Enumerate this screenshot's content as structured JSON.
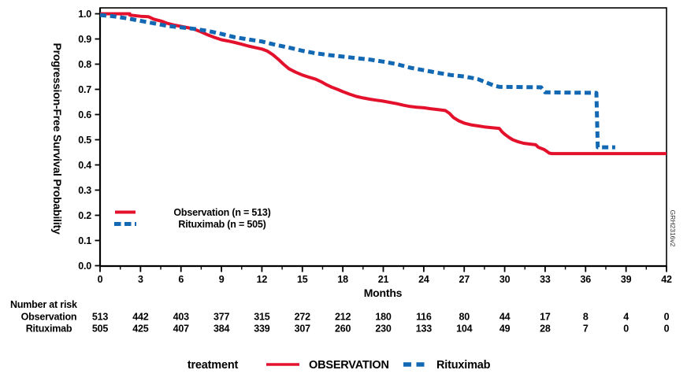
{
  "figure": {
    "watermark": "GRH2316v2"
  },
  "chart_data": {
    "type": "line",
    "subtype": "kaplan-meier-step",
    "title": "",
    "xlabel": "Months",
    "ylabel": "Progression-Free Survival Probability",
    "xlim": [
      0,
      42
    ],
    "ylim": [
      0.0,
      1.0
    ],
    "x_major_ticks": [
      0,
      3,
      6,
      9,
      12,
      15,
      18,
      21,
      24,
      27,
      30,
      33,
      36,
      39,
      42
    ],
    "x_minor_tick_step": 1.5,
    "y_ticks": [
      0.0,
      0.1,
      0.2,
      0.3,
      0.4,
      0.5,
      0.6,
      0.7,
      0.8,
      0.9,
      1.0
    ],
    "grid": false,
    "legend_position": "inside-lower-left",
    "series": [
      {
        "name": "Observation",
        "legend_label": "Observation (n = 513)",
        "color": "#e4112d",
        "style": "solid",
        "points": [
          [
            0,
            1.0
          ],
          [
            2.2,
            1.0
          ],
          [
            2.2,
            0.995
          ],
          [
            3,
            0.99
          ],
          [
            3.6,
            0.988
          ],
          [
            4,
            0.978
          ],
          [
            4.6,
            0.97
          ],
          [
            5,
            0.962
          ],
          [
            5.5,
            0.955
          ],
          [
            6,
            0.95
          ],
          [
            6.5,
            0.945
          ],
          [
            7,
            0.938
          ],
          [
            7.5,
            0.928
          ],
          [
            8,
            0.916
          ],
          [
            8.5,
            0.906
          ],
          [
            9,
            0.897
          ],
          [
            9.5,
            0.892
          ],
          [
            10,
            0.886
          ],
          [
            10.5,
            0.879
          ],
          [
            11,
            0.872
          ],
          [
            11.5,
            0.866
          ],
          [
            12,
            0.86
          ],
          [
            12.4,
            0.852
          ],
          [
            12.8,
            0.838
          ],
          [
            13.2,
            0.82
          ],
          [
            13.6,
            0.8
          ],
          [
            14,
            0.782
          ],
          [
            14.5,
            0.768
          ],
          [
            15,
            0.757
          ],
          [
            15.5,
            0.748
          ],
          [
            16,
            0.74
          ],
          [
            16.4,
            0.73
          ],
          [
            16.8,
            0.718
          ],
          [
            17.2,
            0.708
          ],
          [
            17.6,
            0.7
          ],
          [
            18,
            0.691
          ],
          [
            18.5,
            0.681
          ],
          [
            19,
            0.672
          ],
          [
            19.5,
            0.666
          ],
          [
            20,
            0.661
          ],
          [
            20.5,
            0.657
          ],
          [
            21,
            0.653
          ],
          [
            21.5,
            0.648
          ],
          [
            22,
            0.643
          ],
          [
            22.5,
            0.637
          ],
          [
            23,
            0.632
          ],
          [
            23.5,
            0.629
          ],
          [
            24,
            0.627
          ],
          [
            24.5,
            0.623
          ],
          [
            25,
            0.62
          ],
          [
            25.6,
            0.616
          ],
          [
            25.9,
            0.605
          ],
          [
            26.2,
            0.588
          ],
          [
            26.6,
            0.575
          ],
          [
            27,
            0.566
          ],
          [
            27.5,
            0.559
          ],
          [
            28,
            0.555
          ],
          [
            28.5,
            0.551
          ],
          [
            29,
            0.548
          ],
          [
            29.6,
            0.545
          ],
          [
            29.8,
            0.532
          ],
          [
            30,
            0.522
          ],
          [
            30.3,
            0.51
          ],
          [
            30.6,
            0.5
          ],
          [
            31,
            0.492
          ],
          [
            31.4,
            0.486
          ],
          [
            31.8,
            0.483
          ],
          [
            32.3,
            0.48
          ],
          [
            32.5,
            0.47
          ],
          [
            32.9,
            0.462
          ],
          [
            33.1,
            0.455
          ],
          [
            33.3,
            0.447
          ],
          [
            33.5,
            0.445
          ],
          [
            42,
            0.445
          ]
        ]
      },
      {
        "name": "Rituximab",
        "legend_label": "Rituximab (n = 505)",
        "color": "#1268b2",
        "style": "dashed",
        "points": [
          [
            0,
            0.995
          ],
          [
            1,
            0.99
          ],
          [
            2,
            0.982
          ],
          [
            3,
            0.972
          ],
          [
            4,
            0.962
          ],
          [
            5,
            0.952
          ],
          [
            6,
            0.946
          ],
          [
            7,
            0.94
          ],
          [
            8,
            0.932
          ],
          [
            9,
            0.92
          ],
          [
            10,
            0.907
          ],
          [
            11,
            0.898
          ],
          [
            12,
            0.89
          ],
          [
            13,
            0.877
          ],
          [
            14,
            0.866
          ],
          [
            15,
            0.853
          ],
          [
            16,
            0.843
          ],
          [
            17,
            0.836
          ],
          [
            18,
            0.83
          ],
          [
            19,
            0.824
          ],
          [
            20,
            0.818
          ],
          [
            21,
            0.81
          ],
          [
            22,
            0.8
          ],
          [
            23,
            0.786
          ],
          [
            24,
            0.776
          ],
          [
            25,
            0.766
          ],
          [
            26,
            0.757
          ],
          [
            27,
            0.751
          ],
          [
            28,
            0.741
          ],
          [
            28.6,
            0.728
          ],
          [
            29.2,
            0.715
          ],
          [
            29.6,
            0.71
          ],
          [
            32.7,
            0.708
          ],
          [
            33,
            0.688
          ],
          [
            36.8,
            0.686
          ],
          [
            36.9,
            0.47
          ],
          [
            38.2,
            0.47
          ]
        ]
      }
    ]
  },
  "risk_table": {
    "title": "Number at risk",
    "rows": [
      {
        "label": "Observation",
        "values": [
          513,
          442,
          403,
          377,
          315,
          272,
          212,
          180,
          116,
          80,
          44,
          17,
          8,
          4,
          0
        ]
      },
      {
        "label": "Rituximab",
        "values": [
          505,
          425,
          407,
          384,
          339,
          307,
          260,
          230,
          133,
          104,
          49,
          28,
          7,
          0,
          0
        ]
      }
    ]
  },
  "bottom_legend": {
    "title": "treatment",
    "items": [
      {
        "label": "OBSERVATION",
        "color": "#e4112d",
        "style": "solid"
      },
      {
        "label": "Rituximab",
        "color": "#1268b2",
        "style": "dashed"
      }
    ]
  }
}
